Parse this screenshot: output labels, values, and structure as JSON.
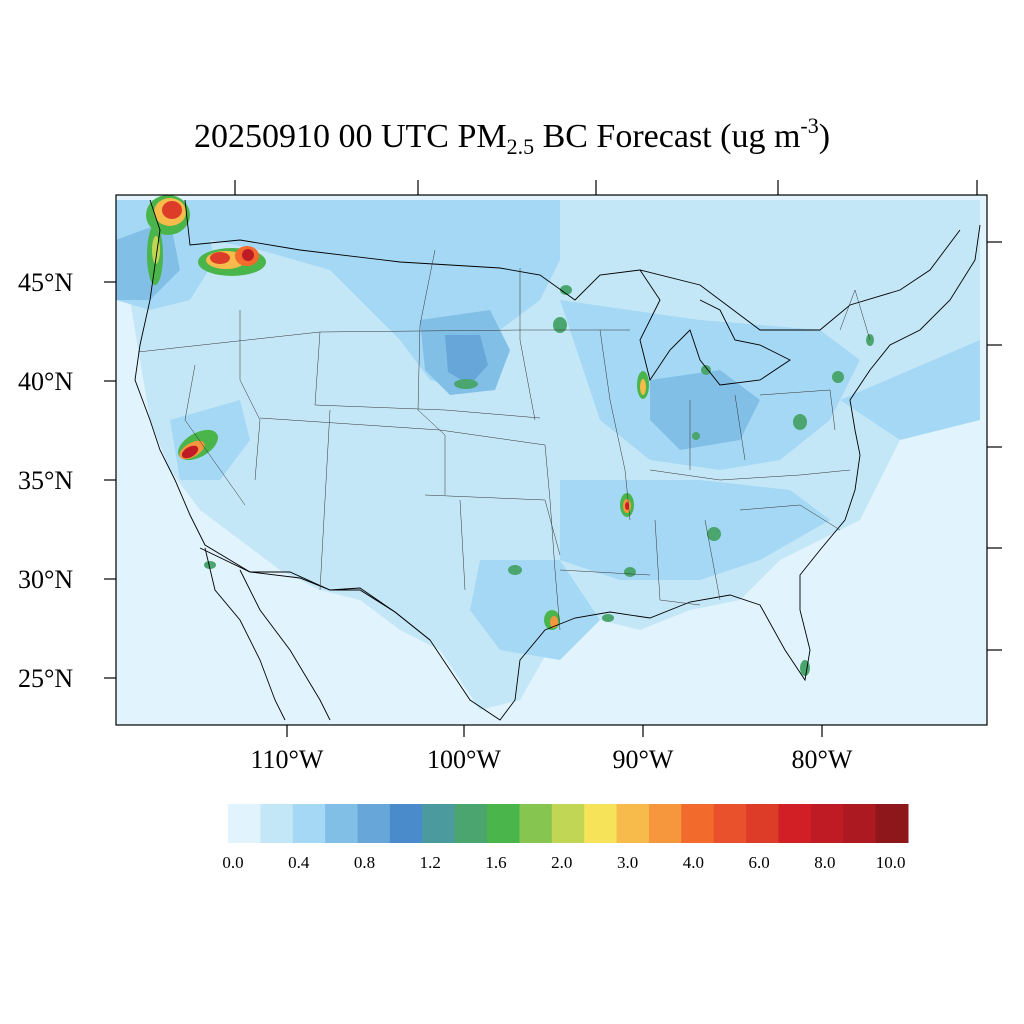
{
  "title": {
    "main": "20250910 00 UTC PM",
    "sub": "2.5",
    "tail": " BC Forecast (ug m",
    "sup": "-3",
    "close": ")"
  },
  "lat_labels": [
    "45°N",
    "40°N",
    "35°N",
    "30°N",
    "25°N"
  ],
  "lon_labels": [
    "110°W",
    "100°W",
    "90°W",
    "80°W"
  ],
  "colorbar": {
    "colors": [
      "#e1f3fc",
      "#c4e7f8",
      "#a5d8f4",
      "#82bfe6",
      "#67a6d9",
      "#4a8bcb",
      "#4a9a9e",
      "#4aa66e",
      "#4ab54a",
      "#86c54f",
      "#c2d655",
      "#f7e35a",
      "#f6bb4a",
      "#f6973d",
      "#f26a2c",
      "#e8512b",
      "#dd3d28",
      "#d21f26",
      "#bf1b24",
      "#ac1921",
      "#8e171b"
    ],
    "labels": [
      "0.0",
      "0.4",
      "0.8",
      "1.2",
      "1.6",
      "2.0",
      "3.0",
      "4.0",
      "6.0",
      "8.0",
      "10.0"
    ]
  }
}
